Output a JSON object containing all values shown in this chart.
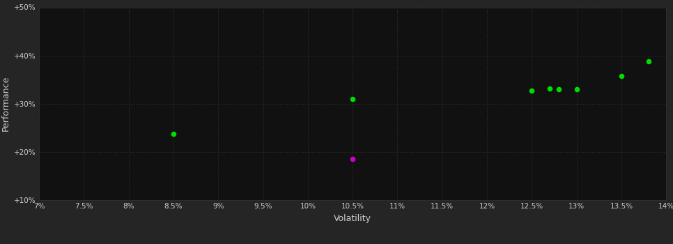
{
  "background_color": "#252525",
  "plot_bg_color": "#111111",
  "grid_color": "#333333",
  "tick_color": "#cccccc",
  "label_color": "#cccccc",
  "xlabel": "Volatility",
  "ylabel": "Performance",
  "xlim": [
    0.07,
    0.14
  ],
  "ylim": [
    0.1,
    0.5
  ],
  "xticks": [
    0.07,
    0.075,
    0.08,
    0.085,
    0.09,
    0.095,
    0.1,
    0.105,
    0.11,
    0.115,
    0.12,
    0.125,
    0.13,
    0.135,
    0.14
  ],
  "yticks": [
    0.1,
    0.2,
    0.3,
    0.4,
    0.5
  ],
  "xtick_labels": [
    "7%",
    "7.5%",
    "8%",
    "8.5%",
    "9%",
    "9.5%",
    "10%",
    "10.5%",
    "11%",
    "11.5%",
    "12%",
    "12.5%",
    "13%",
    "13.5%",
    "14%"
  ],
  "ytick_labels": [
    "+10%",
    "+20%",
    "+30%",
    "+40%",
    "+50%"
  ],
  "green_points": [
    [
      0.085,
      0.237
    ],
    [
      0.105,
      0.31
    ],
    [
      0.125,
      0.327
    ],
    [
      0.127,
      0.332
    ],
    [
      0.128,
      0.33
    ],
    [
      0.13,
      0.33
    ],
    [
      0.135,
      0.358
    ],
    [
      0.138,
      0.388
    ]
  ],
  "magenta_points": [
    [
      0.105,
      0.185
    ]
  ],
  "point_size": 30,
  "green_color": "#00dd00",
  "magenta_color": "#cc00cc"
}
